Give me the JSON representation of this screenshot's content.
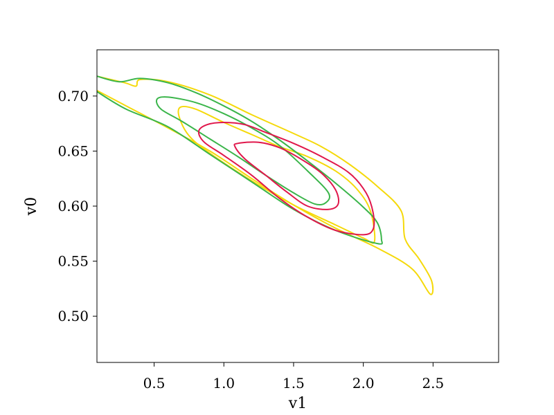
{
  "chart_data": {
    "type": "contour",
    "title": "",
    "xlabel": "v1",
    "ylabel": "v0",
    "xlim": [
      0.09,
      2.97
    ],
    "ylim": [
      0.458,
      0.742
    ],
    "xticks": [
      0.5,
      1.0,
      1.5,
      2.0,
      2.5
    ],
    "yticks": [
      0.5,
      0.55,
      0.6,
      0.65,
      0.7
    ],
    "xtick_labels": [
      "0.5",
      "1.0",
      "1.5",
      "2.0",
      "2.5"
    ],
    "ytick_labels": [
      "0.50",
      "0.55",
      "0.60",
      "0.65",
      "0.70"
    ],
    "grid": false,
    "legend": null,
    "series": [
      {
        "color": "#f5d90a",
        "contours": [
          {
            "points": [
              [
                0.09,
                0.705
              ],
              [
                0.3,
                0.691
              ],
              [
                0.6,
                0.671
              ],
              [
                0.9,
                0.65
              ],
              [
                1.2,
                0.625
              ],
              [
                1.5,
                0.601
              ],
              [
                1.8,
                0.58
              ],
              [
                2.1,
                0.562
              ],
              [
                2.35,
                0.543
              ],
              [
                2.48,
                0.52
              ],
              [
                2.49,
                0.532
              ],
              [
                2.4,
                0.552
              ],
              [
                2.3,
                0.57
              ],
              [
                2.27,
                0.596
              ],
              [
                2.1,
                0.618
              ],
              [
                1.9,
                0.638
              ],
              [
                1.7,
                0.654
              ],
              [
                1.5,
                0.666
              ],
              [
                1.2,
                0.683
              ],
              [
                0.9,
                0.701
              ],
              [
                0.6,
                0.713
              ],
              [
                0.4,
                0.715
              ],
              [
                0.37,
                0.709
              ],
              [
                0.29,
                0.712
              ],
              [
                0.09,
                0.718
              ]
            ],
            "closed": false
          },
          {
            "points": [
              [
                0.69,
                0.69
              ],
              [
                0.8,
                0.688
              ],
              [
                1.0,
                0.676
              ],
              [
                1.2,
                0.665
              ],
              [
                1.4,
                0.654
              ],
              [
                1.6,
                0.645
              ],
              [
                1.8,
                0.632
              ],
              [
                1.95,
                0.616
              ],
              [
                2.05,
                0.596
              ],
              [
                2.08,
                0.568
              ],
              [
                2.0,
                0.571
              ],
              [
                1.8,
                0.583
              ],
              [
                1.5,
                0.601
              ],
              [
                1.2,
                0.623
              ],
              [
                0.9,
                0.648
              ],
              [
                0.75,
                0.664
              ],
              [
                0.68,
                0.681
              ]
            ],
            "closed": true
          }
        ]
      },
      {
        "color": "#3ab54a",
        "contours": [
          {
            "points": [
              [
                0.09,
                0.704
              ],
              [
                0.3,
                0.688
              ],
              [
                0.6,
                0.672
              ],
              [
                0.9,
                0.647
              ],
              [
                1.2,
                0.622
              ],
              [
                1.5,
                0.597
              ],
              [
                1.8,
                0.578
              ],
              [
                2.1,
                0.566
              ],
              [
                2.13,
                0.57
              ],
              [
                2.1,
                0.585
              ],
              [
                2.0,
                0.599
              ],
              [
                1.8,
                0.621
              ],
              [
                1.6,
                0.641
              ],
              [
                1.4,
                0.66
              ],
              [
                1.2,
                0.677
              ],
              [
                1.0,
                0.691
              ],
              [
                0.8,
                0.703
              ],
              [
                0.6,
                0.712
              ],
              [
                0.4,
                0.716
              ],
              [
                0.25,
                0.713
              ],
              [
                0.09,
                0.718
              ]
            ],
            "closed": false
          },
          {
            "points": [
              [
                0.52,
                0.697
              ],
              [
                0.6,
                0.699
              ],
              [
                0.8,
                0.694
              ],
              [
                1.0,
                0.684
              ],
              [
                1.2,
                0.671
              ],
              [
                1.4,
                0.655
              ],
              [
                1.6,
                0.632
              ],
              [
                1.75,
                0.612
              ],
              [
                1.73,
                0.603
              ],
              [
                1.65,
                0.602
              ],
              [
                1.5,
                0.612
              ],
              [
                1.3,
                0.628
              ],
              [
                1.1,
                0.645
              ],
              [
                0.9,
                0.661
              ],
              [
                0.7,
                0.677
              ],
              [
                0.55,
                0.688
              ]
            ],
            "closed": true
          }
        ]
      },
      {
        "color": "#e0174b",
        "contours": [
          {
            "points": [
              [
                0.82,
                0.668
              ],
              [
                0.88,
                0.674
              ],
              [
                1.0,
                0.676
              ],
              [
                1.15,
                0.674
              ],
              [
                1.3,
                0.667
              ],
              [
                1.5,
                0.657
              ],
              [
                1.7,
                0.645
              ],
              [
                1.9,
                0.63
              ],
              [
                2.02,
                0.612
              ],
              [
                2.07,
                0.594
              ],
              [
                2.07,
                0.579
              ],
              [
                2.0,
                0.574
              ],
              [
                1.8,
                0.578
              ],
              [
                1.6,
                0.59
              ],
              [
                1.4,
                0.607
              ],
              [
                1.2,
                0.628
              ],
              [
                1.0,
                0.646
              ],
              [
                0.86,
                0.658
              ]
            ],
            "closed": true
          },
          {
            "points": [
              [
                1.08,
                0.654
              ],
              [
                1.1,
                0.657
              ],
              [
                1.25,
                0.658
              ],
              [
                1.4,
                0.653
              ],
              [
                1.55,
                0.643
              ],
              [
                1.7,
                0.63
              ],
              [
                1.8,
                0.615
              ],
              [
                1.82,
                0.602
              ],
              [
                1.75,
                0.597
              ],
              [
                1.6,
                0.6
              ],
              [
                1.45,
                0.613
              ],
              [
                1.3,
                0.628
              ],
              [
                1.15,
                0.643
              ]
            ],
            "closed": true
          }
        ]
      }
    ]
  }
}
